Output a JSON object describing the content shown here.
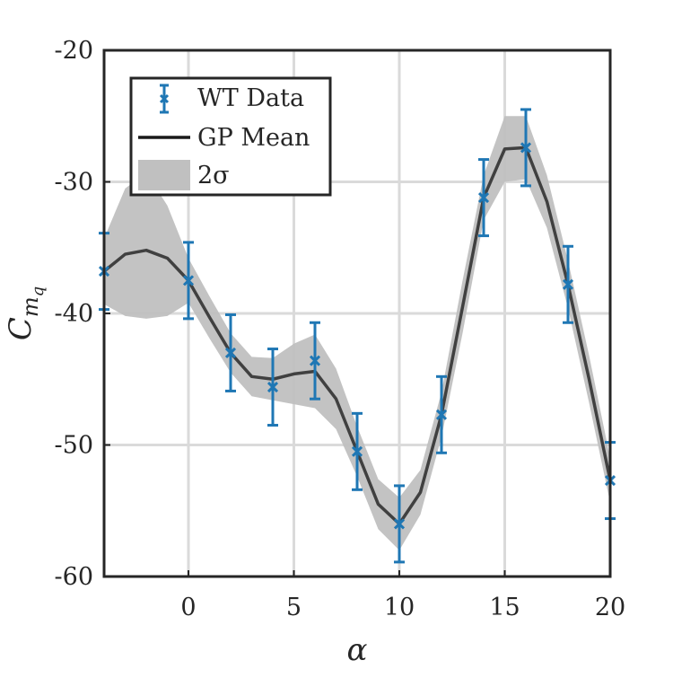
{
  "chart_data": {
    "type": "line",
    "xlabel": "α",
    "ylabel": "C",
    "ylabel_subscript": "m",
    "ylabel_subsubscript": "q",
    "xlim": [
      -4,
      20
    ],
    "ylim": [
      -60,
      -20
    ],
    "x_ticks": [
      0,
      5,
      10,
      15,
      20
    ],
    "y_ticks": [
      -20,
      -30,
      -40,
      -50,
      -60
    ],
    "x_tick_labels": [
      "0",
      "5",
      "10",
      "15",
      "20"
    ],
    "y_tick_labels": [
      "-20",
      "-30",
      "-40",
      "-50",
      "-60"
    ],
    "grid": true,
    "legend_position": "top-left",
    "series": [
      {
        "name": "WT Data",
        "kind": "errorbar",
        "color": "#1f77b4",
        "marker": "x",
        "points": [
          {
            "x": -4,
            "y": -36.8,
            "err": 2.9
          },
          {
            "x": 0,
            "y": -37.5,
            "err": 2.9
          },
          {
            "x": 2,
            "y": -43.0,
            "err": 2.9
          },
          {
            "x": 4,
            "y": -45.6,
            "err": 2.9
          },
          {
            "x": 6,
            "y": -43.6,
            "err": 2.9
          },
          {
            "x": 8,
            "y": -50.5,
            "err": 2.9
          },
          {
            "x": 10,
            "y": -56.0,
            "err": 2.9
          },
          {
            "x": 12,
            "y": -47.7,
            "err": 2.9
          },
          {
            "x": 14,
            "y": -31.2,
            "err": 2.9
          },
          {
            "x": 16,
            "y": -27.4,
            "err": 2.9
          },
          {
            "x": 18,
            "y": -37.8,
            "err": 2.9
          },
          {
            "x": 20,
            "y": -52.7,
            "err": 2.9
          }
        ]
      },
      {
        "name": "GP Mean",
        "kind": "line",
        "color": "#404040",
        "x": [
          -4,
          -3,
          -2,
          -1,
          0,
          1,
          2,
          3,
          4,
          5,
          6,
          7,
          8,
          9,
          10,
          11,
          12,
          13,
          14,
          15,
          16,
          17,
          18,
          19,
          20
        ],
        "y": [
          -36.8,
          -35.5,
          -35.2,
          -35.8,
          -37.5,
          -40.3,
          -43.0,
          -44.8,
          -45.0,
          -44.6,
          -44.4,
          -46.5,
          -50.5,
          -54.5,
          -56.0,
          -53.6,
          -47.7,
          -39.5,
          -31.2,
          -27.5,
          -27.4,
          -31.5,
          -37.8,
          -45.0,
          -52.7
        ]
      },
      {
        "name": "2σ",
        "kind": "band",
        "color": "#c0c0c0",
        "x": [
          -4,
          -3,
          -2,
          -1,
          0,
          1,
          2,
          3,
          4,
          5,
          6,
          7,
          8,
          9,
          10,
          11,
          12,
          13,
          14,
          15,
          16,
          17,
          18,
          19,
          20
        ],
        "upper": [
          -34.3,
          -30.5,
          -29.3,
          -31.8,
          -35.8,
          -38.7,
          -41.5,
          -43.3,
          -43.4,
          -42.3,
          -41.6,
          -44.2,
          -48.6,
          -52.6,
          -54.0,
          -51.9,
          -46.0,
          -37.5,
          -29.5,
          -25.0,
          -25.0,
          -29.5,
          -36.0,
          -43.2,
          -51.0
        ],
        "lower": [
          -39.3,
          -40.2,
          -40.4,
          -40.2,
          -39.2,
          -41.9,
          -44.5,
          -46.3,
          -46.6,
          -46.9,
          -47.2,
          -48.8,
          -52.4,
          -56.4,
          -58.0,
          -55.3,
          -49.4,
          -41.5,
          -32.9,
          -30.0,
          -29.8,
          -33.5,
          -39.6,
          -46.8,
          -54.4
        ]
      }
    ],
    "legend": {
      "items": [
        "WT Data",
        "GP Mean",
        "2σ"
      ]
    }
  }
}
